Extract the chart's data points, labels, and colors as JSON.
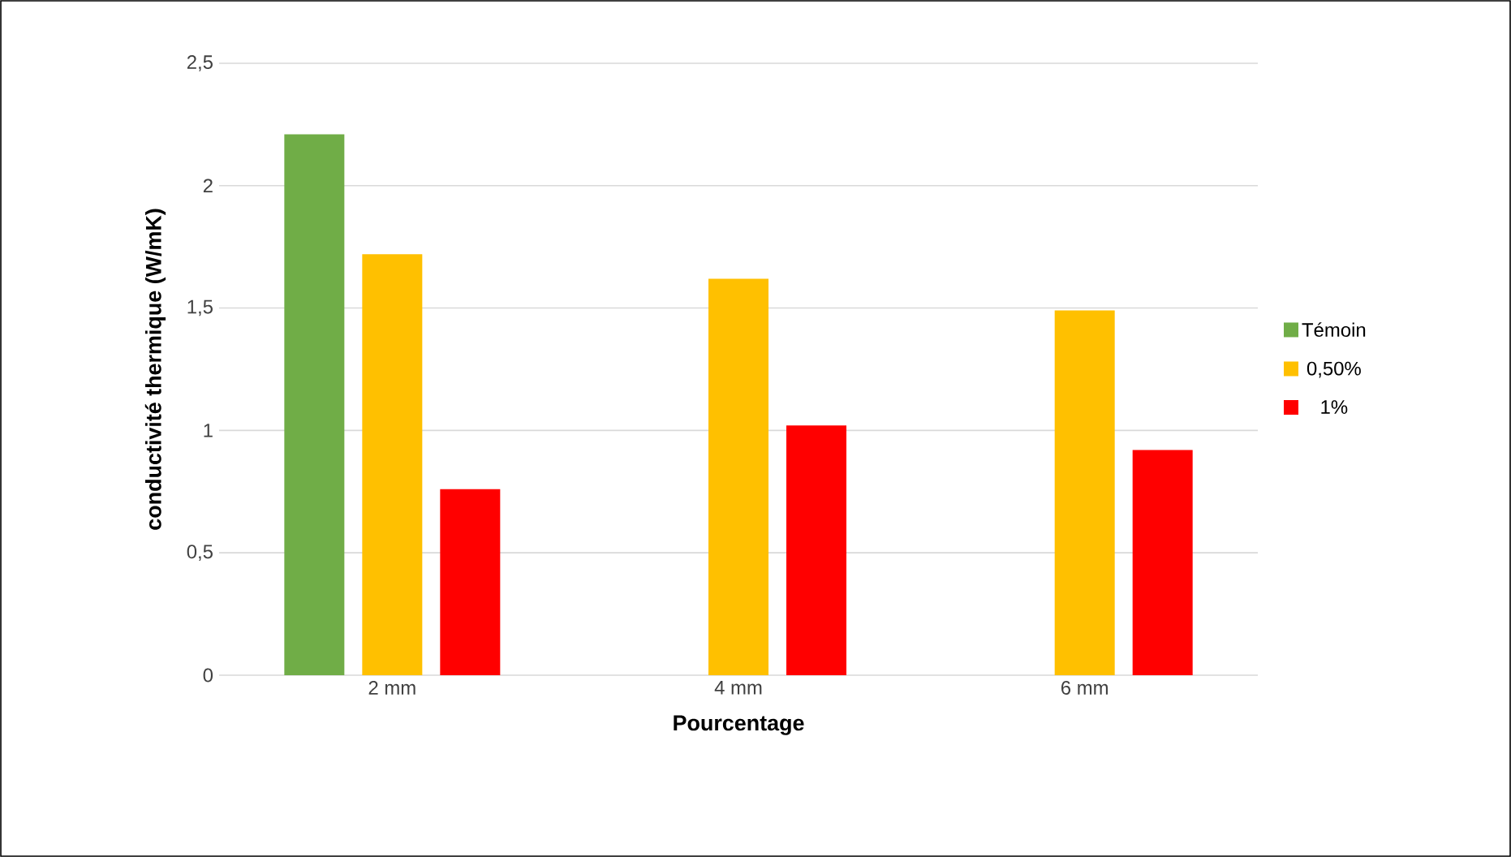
{
  "chart_data": {
    "type": "bar",
    "xlabel": "Pourcentage",
    "ylabel": "conductivité thermique (W/mK)",
    "categories": [
      "2 mm",
      "4 mm",
      "6 mm"
    ],
    "series": [
      {
        "name": "Témoin",
        "color": "#70ad47",
        "values": [
          2.21,
          null,
          null
        ]
      },
      {
        "name": "0,50%",
        "color": "#ffc000",
        "values": [
          1.72,
          1.62,
          1.49
        ]
      },
      {
        "name": "1%",
        "color": "#ff0000",
        "values": [
          0.76,
          1.02,
          0.92
        ]
      }
    ],
    "ylim": [
      0,
      2.5
    ],
    "yticks": [
      0,
      {
        "value": 0.5,
        "label": "0,5"
      },
      1,
      {
        "value": 1.5,
        "label": "1,5"
      },
      2,
      {
        "value": 2.5,
        "label": "2,5"
      }
    ],
    "grid": "y",
    "legend": "right"
  }
}
